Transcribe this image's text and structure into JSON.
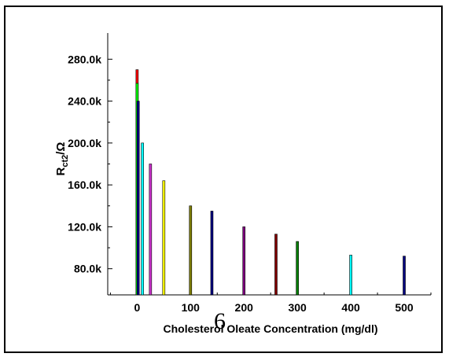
{
  "chart_data": {
    "type": "bar",
    "xlabel": "Cholesterol Oleate Concentration (mg/dl)",
    "ylabel_main": "R",
    "ylabel_sub": "ct2",
    "ylabel_tail": "/Ω",
    "x_ticks": [
      0,
      100,
      200,
      300,
      400,
      500
    ],
    "y_ticks": [
      {
        "value": 80000,
        "label": "80.0k"
      },
      {
        "value": 120000,
        "label": "120.0k"
      },
      {
        "value": 160000,
        "label": "160.0k"
      },
      {
        "value": 200000,
        "label": "200.0k"
      },
      {
        "value": 240000,
        "label": "240.0k"
      },
      {
        "value": 280000,
        "label": "280.0k"
      }
    ],
    "xlim": [
      -55,
      550
    ],
    "ylim": [
      55000,
      305000
    ],
    "bars": [
      {
        "x": 0,
        "value": 270000,
        "color": "#ff0000"
      },
      {
        "x": 0,
        "value": 257000,
        "color": "#00ff00"
      },
      {
        "x": 2,
        "value": 240000,
        "color": "#000080"
      },
      {
        "x": 10,
        "value": 200000,
        "color": "#00ffff"
      },
      {
        "x": 25,
        "value": 180000,
        "color": "#cc33cc"
      },
      {
        "x": 50,
        "value": 164000,
        "color": "#ffff00"
      },
      {
        "x": 100,
        "value": 140000,
        "color": "#808000"
      },
      {
        "x": 140,
        "value": 135000,
        "color": "#000080"
      },
      {
        "x": 200,
        "value": 120000,
        "color": "#800080"
      },
      {
        "x": 260,
        "value": 113000,
        "color": "#800000"
      },
      {
        "x": 300,
        "value": 106000,
        "color": "#008000"
      },
      {
        "x": 400,
        "value": 93000,
        "color": "#00ffff"
      },
      {
        "x": 500,
        "value": 92000,
        "color": "#000080"
      }
    ]
  },
  "overlay_text": "6"
}
